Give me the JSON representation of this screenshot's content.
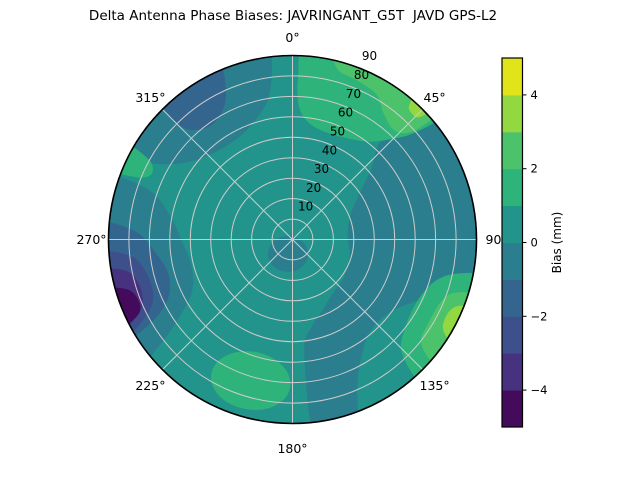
{
  "title": "Delta Antenna Phase Biases: JAVRINGANT_G5T  JAVD GPS-L2",
  "figure_background": "#ffffff",
  "chart_data": {
    "type": "polar_contour",
    "title": "Delta Antenna Phase Biases: JAVRINGANT_G5T  JAVD GPS-L2",
    "theta_direction": "clockwise_from_north",
    "theta_labels": [
      {
        "az": 0,
        "label": "0°"
      },
      {
        "az": 45,
        "label": "45°"
      },
      {
        "az": 90,
        "label": "90"
      },
      {
        "az": 135,
        "label": "135°"
      },
      {
        "az": 180,
        "label": "180°"
      },
      {
        "az": 225,
        "label": "225°"
      },
      {
        "az": 270,
        "label": "270°"
      },
      {
        "az": 315,
        "label": "315°"
      }
    ],
    "radial_ticks": [
      10,
      20,
      30,
      40,
      50,
      60,
      70,
      80,
      90
    ],
    "radial_max": 90,
    "grid_color": "#cccccc",
    "rim_color": "#000000",
    "levels": {
      "min": -5,
      "max": 5,
      "step": 1
    },
    "level_colors": [
      "#440a5c",
      "#46327e",
      "#3d508b",
      "#33658e",
      "#2b7e8e",
      "#23948b",
      "#2eb37a",
      "#4cc36a",
      "#93d741",
      "#e2e41a"
    ],
    "regions": [
      {
        "name": "background-disk",
        "value_range": "0..1",
        "level": 5,
        "shape": "disk"
      },
      {
        "name": "right-dark-teal",
        "value_range": "-1..0",
        "level": 4,
        "shape": "blob",
        "pts": [
          [
            50,
            95
          ],
          [
            60,
            95
          ],
          [
            70,
            95
          ],
          [
            80,
            95
          ],
          [
            90,
            95
          ],
          [
            100,
            95
          ],
          [
            109,
            80
          ],
          [
            117,
            67
          ],
          [
            128,
            59
          ],
          [
            140,
            59
          ],
          [
            150,
            67
          ],
          [
            156,
            78
          ],
          [
            161,
            95
          ],
          [
            168,
            95
          ],
          [
            174,
            95
          ],
          [
            174,
            55
          ],
          [
            168,
            44
          ],
          [
            158,
            38
          ],
          [
            144,
            33
          ],
          [
            125,
            31
          ],
          [
            105,
            29
          ],
          [
            87,
            27
          ],
          [
            69,
            30
          ],
          [
            57,
            38
          ],
          [
            48,
            52
          ],
          [
            42,
            64
          ],
          [
            45,
            80
          ]
        ]
      },
      {
        "name": "center-dark-teal",
        "value_range": "-1..0",
        "level": 4,
        "shape": "ellipse",
        "az": 197,
        "r": 7.4,
        "rx": 20,
        "ry": 18,
        "rot": 0
      },
      {
        "name": "left-dark-teal",
        "value_range": "-1..0",
        "level": 4,
        "shape": "blob",
        "pts": [
          [
            231,
            95
          ],
          [
            240,
            95
          ],
          [
            250,
            95
          ],
          [
            260,
            95
          ],
          [
            270,
            95
          ],
          [
            280,
            95
          ],
          [
            289,
            95
          ],
          [
            289,
            74
          ],
          [
            281,
            61
          ],
          [
            269,
            54
          ],
          [
            256,
            51
          ],
          [
            243,
            55
          ],
          [
            236,
            66
          ],
          [
            232,
            80
          ]
        ]
      },
      {
        "name": "upper-left-dark-teal",
        "value_range": "-1..0",
        "level": 4,
        "shape": "blob",
        "pts": [
          [
            296,
            95
          ],
          [
            305,
            95
          ],
          [
            315,
            95
          ],
          [
            325,
            95
          ],
          [
            335,
            95
          ],
          [
            344,
            95
          ],
          [
            353,
            95
          ],
          [
            351,
            72
          ],
          [
            341,
            60
          ],
          [
            328,
            56
          ],
          [
            313,
            59
          ],
          [
            303,
            68
          ],
          [
            298,
            80
          ]
        ]
      },
      {
        "name": "left-blue-band",
        "value_range": "-2..-1",
        "level": 3,
        "shape": "blob",
        "pts": [
          [
            239,
            95
          ],
          [
            248,
            95
          ],
          [
            258,
            95
          ],
          [
            267,
            95
          ],
          [
            275,
            95
          ],
          [
            273,
            77
          ],
          [
            264,
            67
          ],
          [
            254,
            63
          ],
          [
            245,
            67
          ],
          [
            240,
            78
          ]
        ]
      },
      {
        "name": "upper-left-blue-patch",
        "value_range": "-2..-1",
        "level": 3,
        "shape": "blob",
        "pts": [
          [
            317,
            95
          ],
          [
            325,
            95
          ],
          [
            333,
            95
          ],
          [
            338,
            95
          ],
          [
            335,
            77
          ],
          [
            327,
            69
          ],
          [
            319,
            71
          ],
          [
            315,
            80
          ]
        ]
      },
      {
        "name": "left-deep-blue-band",
        "value_range": "-3..-2",
        "level": 2,
        "shape": "blob",
        "pts": [
          [
            240,
            95
          ],
          [
            248,
            95
          ],
          [
            258,
            95
          ],
          [
            266,
            95
          ],
          [
            264,
            79
          ],
          [
            256,
            73
          ],
          [
            247,
            74
          ],
          [
            242,
            82
          ]
        ]
      },
      {
        "name": "left-purple-blue-band",
        "value_range": "-4..-3",
        "level": 1,
        "shape": "blob",
        "pts": [
          [
            242,
            95
          ],
          [
            250,
            95
          ],
          [
            257,
            95
          ],
          [
            261,
            95
          ],
          [
            259,
            82
          ],
          [
            252,
            78
          ],
          [
            245,
            82
          ]
        ]
      },
      {
        "name": "left-dark-purple",
        "value_range": "-5..-4",
        "level": 0,
        "shape": "blob",
        "pts": [
          [
            243,
            95
          ],
          [
            249,
            95
          ],
          [
            255,
            95
          ],
          [
            253,
            84
          ],
          [
            248,
            81
          ],
          [
            244,
            84
          ]
        ]
      },
      {
        "name": "top-green",
        "value_range": "1..2",
        "level": 6,
        "shape": "blob",
        "pts": [
          [
            3,
            95
          ],
          [
            12,
            95
          ],
          [
            22,
            95
          ],
          [
            32,
            95
          ],
          [
            41,
            95
          ],
          [
            50,
            95
          ],
          [
            49,
            80
          ],
          [
            44,
            68
          ],
          [
            37,
            60
          ],
          [
            27,
            56
          ],
          [
            17,
            55
          ],
          [
            9,
            57
          ],
          [
            4,
            62
          ],
          [
            2,
            70
          ],
          [
            2,
            80
          ]
        ]
      },
      {
        "name": "right-green-band",
        "value_range": "1..2",
        "level": 6,
        "shape": "blob",
        "pts": [
          [
            101,
            95
          ],
          [
            110,
            95
          ],
          [
            120,
            95
          ],
          [
            130,
            95
          ],
          [
            138,
            95
          ],
          [
            136,
            77
          ],
          [
            128,
            70
          ],
          [
            117,
            68
          ],
          [
            107,
            72
          ],
          [
            102,
            81
          ]
        ]
      },
      {
        "name": "bottom-green-blob",
        "value_range": "1..2",
        "level": 6,
        "shape": "ellipse",
        "az": 196.5,
        "r": 72,
        "rx": 40,
        "ry": 29,
        "rot": 10
      },
      {
        "name": "left-green-patch",
        "value_range": "1..2",
        "level": 6,
        "shape": "blob",
        "pts": [
          [
            291,
            95
          ],
          [
            296,
            95
          ],
          [
            300,
            95
          ],
          [
            299,
            80
          ],
          [
            295,
            76
          ],
          [
            292,
            81
          ]
        ]
      },
      {
        "name": "top-bright-green",
        "value_range": "2..3",
        "level": 7,
        "shape": "blob",
        "pts": [
          [
            12,
            95
          ],
          [
            20,
            95
          ],
          [
            28,
            95
          ],
          [
            36,
            95
          ],
          [
            44,
            95
          ],
          [
            49,
            95
          ],
          [
            48,
            79
          ],
          [
            43,
            73
          ],
          [
            36,
            76
          ],
          [
            30,
            82
          ],
          [
            22,
            84
          ],
          [
            15,
            86
          ]
        ]
      },
      {
        "name": "right-bright-green-crescent",
        "value_range": "2..3",
        "level": 7,
        "shape": "blob",
        "pts": [
          [
            107,
            95
          ],
          [
            115,
            95
          ],
          [
            123,
            95
          ],
          [
            131,
            95
          ],
          [
            129,
            81
          ],
          [
            121,
            78
          ],
          [
            112,
            79
          ],
          [
            108,
            84
          ]
        ]
      },
      {
        "name": "top-yellow-green-sliver",
        "value_range": "3..4",
        "level": 8,
        "shape": "blob",
        "pts": [
          [
            40,
            95
          ],
          [
            44,
            95
          ],
          [
            47,
            95
          ],
          [
            46,
            86
          ],
          [
            43,
            85
          ],
          [
            41,
            87
          ]
        ]
      },
      {
        "name": "right-yellow-green-sliver",
        "value_range": "3..4",
        "level": 8,
        "shape": "blob",
        "pts": [
          [
            111,
            95
          ],
          [
            117,
            95
          ],
          [
            123,
            95
          ],
          [
            121,
            86
          ],
          [
            116,
            84
          ],
          [
            112,
            87
          ]
        ]
      }
    ],
    "colorbar": {
      "label": "Bias (mm)",
      "range": [
        -5,
        5
      ],
      "segments": 10,
      "ticks": [
        {
          "v": 4,
          "label": "4"
        },
        {
          "v": 2,
          "label": "2"
        },
        {
          "v": 0,
          "label": "0"
        },
        {
          "v": -2,
          "label": "−2"
        },
        {
          "v": -4,
          "label": "−4"
        }
      ]
    }
  }
}
